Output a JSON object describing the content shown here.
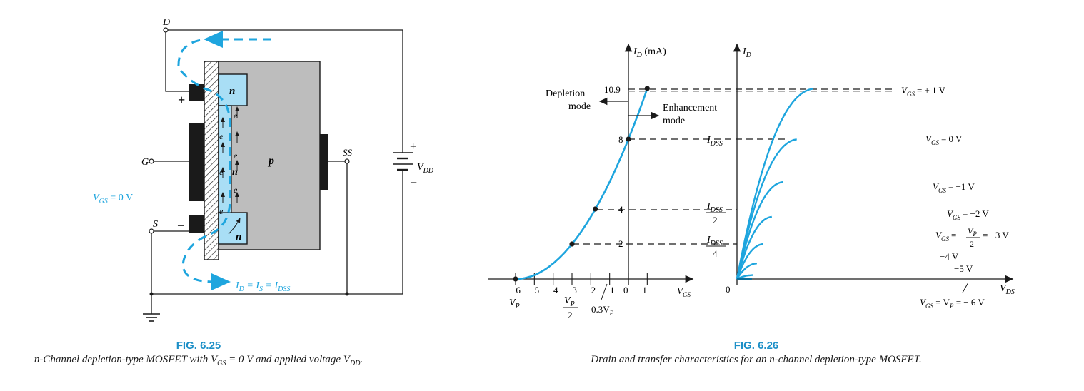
{
  "fig25": {
    "title": "FIG. 6.25",
    "caption_pre": "n-Channel depletion-type MOSFET with V",
    "caption_sub1": "GS",
    "caption_mid": " = 0 V and applied voltage V",
    "caption_sub2": "DD",
    "caption_post": ".",
    "labels": {
      "d": "D",
      "g": "G",
      "s": "S",
      "ss": "SS",
      "n_top": "n",
      "n_bot": "n",
      "n_ch": "n",
      "p": "p",
      "e": "e",
      "plus_top": "+",
      "minus_bot": "−",
      "vdd_plus": "+",
      "vdd_minus": "−",
      "vdd_v": "V",
      "vdd_sub": "DD",
      "vgs_v": "V",
      "vgs_sub": "GS",
      "vgs_val": " = 0 V",
      "id_v": "I",
      "id_sub": "D",
      "id_eq1": " = I",
      "id_sub2": "S",
      "id_eq2": " = I",
      "id_sub3": "DSS"
    }
  },
  "fig26": {
    "title": "FIG. 6.26",
    "caption": "Drain and transfer characteristics for an n-channel depletion-type MOSFET.",
    "transfer": {
      "ylabel_v": "I",
      "ylabel_sub": "D",
      "ylabel_unit": " (mA)",
      "xlabel_v": "V",
      "xlabel_sub": "GS",
      "xticks": [
        "−6",
        "−5",
        "−4",
        "−3",
        "−2",
        "−1",
        "0",
        "1"
      ],
      "yticks": [
        "10.9",
        "8",
        "4",
        "2"
      ],
      "vp_v": "V",
      "vp_sub": "P",
      "vp2_v": "V",
      "vp2_sub": "P",
      "vp2_den": "2",
      "vp03": "0.3V",
      "vp03_sub": "P",
      "depletion_1": "Depletion",
      "depletion_2": "mode",
      "enh_1": "Enhancement",
      "enh_2": "mode",
      "idss_v": "I",
      "idss_sub": "DSS",
      "idss2_den": "2",
      "idss4_den": "4"
    },
    "drain": {
      "ylabel_v": "I",
      "ylabel_sub": "D",
      "xlabel_v": "V",
      "xlabel_sub": "DS",
      "origin": "0",
      "curves": {
        "c1": "= + 1 V",
        "c0": "= 0 V",
        "cm1": "= −1 V",
        "cm2": "= −2  V",
        "cm3_eq": "=",
        "cm3_num": "V",
        "cm3_numsub": "P",
        "cm3_den": "2",
        "cm3_val": "= −3 V",
        "cm4": "−4 V",
        "cm5": "−5 V",
        "bottom_eq1": " = V",
        "bottom_val": " = − 6 V"
      },
      "vgs_v": "V",
      "vgs_sub": "GS"
    }
  },
  "chart_data": {
    "type": "line",
    "transfer_curve": {
      "x": [
        -6,
        -5,
        -4,
        -3,
        -2,
        -1,
        0,
        1
      ],
      "y": [
        0,
        0.22,
        0.89,
        2,
        3.56,
        5.56,
        8,
        10.9
      ],
      "points_marked": [
        [
          -6,
          0
        ],
        [
          -3,
          2
        ],
        [
          -1.76,
          4
        ],
        [
          0,
          8
        ],
        [
          1,
          10.9
        ]
      ]
    },
    "drain_curves": [
      {
        "vgs": 1,
        "id_sat": 10.9
      },
      {
        "vgs": 0,
        "id_sat": 8
      },
      {
        "vgs": -1,
        "id_sat": 5.56
      },
      {
        "vgs": -2,
        "id_sat": 3.56
      },
      {
        "vgs": -3,
        "id_sat": 2
      },
      {
        "vgs": -4,
        "id_sat": 0.89
      },
      {
        "vgs": -5,
        "id_sat": 0.22
      },
      {
        "vgs": -6,
        "id_sat": 0
      }
    ],
    "colors": {
      "curve": "#1ea5de",
      "ink": "#1a1a1a",
      "pbody": "#bdbdbd",
      "nregion": "#a9def5"
    }
  }
}
